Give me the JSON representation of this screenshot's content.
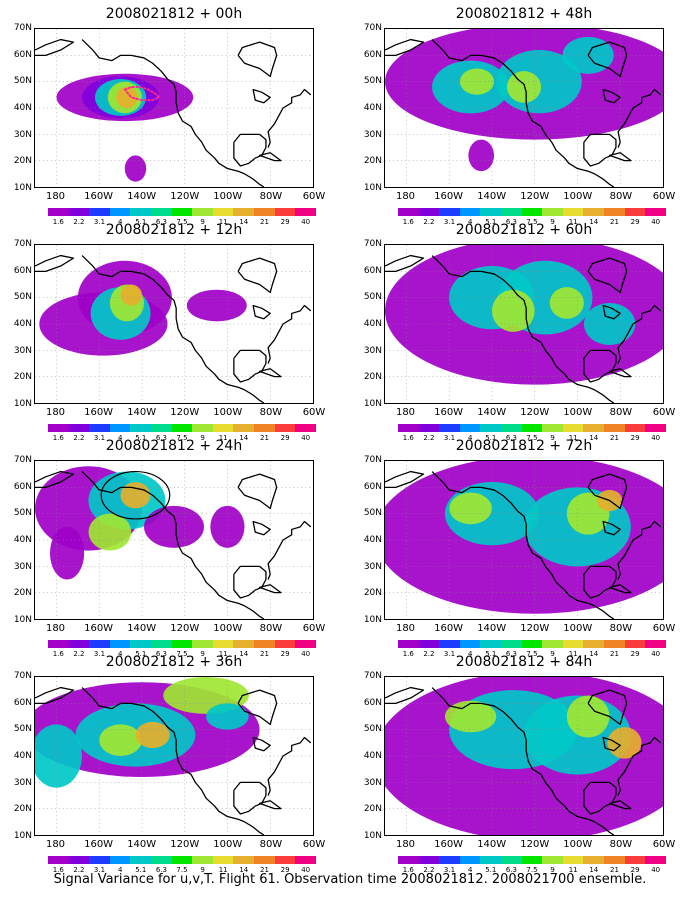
{
  "colorbar": {
    "labels": [
      "1.6",
      "2.2",
      "3.1",
      "4",
      "5.1",
      "6.3",
      "7.5",
      "9",
      "11",
      "14",
      "21",
      "29",
      "40"
    ],
    "colors": [
      "#a000c8",
      "#8200dc",
      "#1e3cff",
      "#0096ff",
      "#00c8c8",
      "#00dc8c",
      "#00e600",
      "#a0e632",
      "#e6dc32",
      "#e6af2d",
      "#f08228",
      "#fa3c3c",
      "#f00082"
    ]
  },
  "map": {
    "y_ticks": [
      "70N",
      "60N",
      "50N",
      "40N",
      "30N",
      "20N",
      "10N"
    ],
    "x_ticks": [
      "180",
      "160W",
      "140W",
      "120W",
      "100W",
      "80W",
      "60W"
    ]
  },
  "panels": [
    {
      "title": "2008021812 + 00h",
      "blobs": [
        {
          "lon": -148,
          "lat": 44,
          "rx": 32,
          "ry": 9,
          "level": 0
        },
        {
          "lon": -150,
          "lat": 44,
          "rx": 18,
          "ry": 8,
          "level": 1
        },
        {
          "lon": -150,
          "lat": 44,
          "rx": 12,
          "ry": 7,
          "level": 4
        },
        {
          "lon": -148,
          "lat": 44,
          "rx": 8,
          "ry": 6,
          "level": 7
        },
        {
          "lon": -147,
          "lat": 44,
          "rx": 5,
          "ry": 4,
          "level": 9
        },
        {
          "lon": -143,
          "lat": 17,
          "rx": 5,
          "ry": 5,
          "level": 0
        }
      ],
      "obs_track": {
        "lons": [
          -148,
          -145,
          -141,
          -137,
          -133,
          -132,
          -135,
          -140,
          -145,
          -148
        ],
        "lats": [
          47,
          48,
          48,
          47,
          45,
          44,
          43,
          43,
          44,
          47
        ],
        "color": "#ff2a8a"
      }
    },
    {
      "title": "2008021812 + 12h",
      "blobs": [
        {
          "lon": -158,
          "lat": 40,
          "rx": 30,
          "ry": 12,
          "level": 0
        },
        {
          "lon": -148,
          "lat": 50,
          "rx": 22,
          "ry": 14,
          "level": 0
        },
        {
          "lon": -150,
          "lat": 44,
          "rx": 14,
          "ry": 10,
          "level": 4
        },
        {
          "lon": -147,
          "lat": 48,
          "rx": 8,
          "ry": 7,
          "level": 7
        },
        {
          "lon": -145,
          "lat": 51,
          "rx": 5,
          "ry": 4,
          "level": 9
        },
        {
          "lon": -105,
          "lat": 47,
          "rx": 14,
          "ry": 6,
          "level": 0
        }
      ]
    },
    {
      "title": "2008021812 + 24h",
      "blobs": [
        {
          "lon": -165,
          "lat": 52,
          "rx": 25,
          "ry": 16,
          "level": 0
        },
        {
          "lon": -147,
          "lat": 55,
          "rx": 18,
          "ry": 11,
          "level": 4
        },
        {
          "lon": -155,
          "lat": 43,
          "rx": 10,
          "ry": 7,
          "level": 7
        },
        {
          "lon": -143,
          "lat": 57,
          "rx": 7,
          "ry": 5,
          "level": 9
        },
        {
          "lon": -125,
          "lat": 45,
          "rx": 14,
          "ry": 8,
          "level": 0
        },
        {
          "lon": -100,
          "lat": 45,
          "rx": 8,
          "ry": 8,
          "level": 0
        },
        {
          "lon": -175,
          "lat": 35,
          "rx": 8,
          "ry": 10,
          "level": 0
        }
      ],
      "ellipse": {
        "lon": -143,
        "lat": 57,
        "rx": 16,
        "ry": 9
      }
    },
    {
      "title": "2008021812 + 36h",
      "blobs": [
        {
          "lon": -140,
          "lat": 50,
          "rx": 55,
          "ry": 18,
          "level": 0
        },
        {
          "lon": -143,
          "lat": 48,
          "rx": 28,
          "ry": 12,
          "level": 4
        },
        {
          "lon": -150,
          "lat": 46,
          "rx": 10,
          "ry": 6,
          "level": 7
        },
        {
          "lon": -135,
          "lat": 48,
          "rx": 8,
          "ry": 5,
          "level": 9
        },
        {
          "lon": -180,
          "lat": 40,
          "rx": 12,
          "ry": 12,
          "level": 4
        },
        {
          "lon": -110,
          "lat": 63,
          "rx": 20,
          "ry": 7,
          "level": 7
        },
        {
          "lon": -100,
          "lat": 55,
          "rx": 10,
          "ry": 5,
          "level": 4
        }
      ]
    },
    {
      "title": "2008021812 + 48h",
      "blobs": [
        {
          "lon": -120,
          "lat": 50,
          "rx": 70,
          "ry": 22,
          "level": 0
        },
        {
          "lon": -150,
          "lat": 48,
          "rx": 18,
          "ry": 10,
          "level": 4
        },
        {
          "lon": -118,
          "lat": 50,
          "rx": 20,
          "ry": 12,
          "level": 4
        },
        {
          "lon": -147,
          "lat": 50,
          "rx": 8,
          "ry": 5,
          "level": 7
        },
        {
          "lon": -125,
          "lat": 48,
          "rx": 8,
          "ry": 6,
          "level": 7
        },
        {
          "lon": -95,
          "lat": 60,
          "rx": 12,
          "ry": 7,
          "level": 4
        },
        {
          "lon": -145,
          "lat": 22,
          "rx": 6,
          "ry": 6,
          "level": 0
        }
      ]
    },
    {
      "title": "2008021812 + 60h",
      "blobs": [
        {
          "lon": -120,
          "lat": 45,
          "rx": 70,
          "ry": 28,
          "level": 0
        },
        {
          "lon": -140,
          "lat": 50,
          "rx": 20,
          "ry": 12,
          "level": 4
        },
        {
          "lon": -115,
          "lat": 50,
          "rx": 22,
          "ry": 14,
          "level": 4
        },
        {
          "lon": -130,
          "lat": 45,
          "rx": 10,
          "ry": 8,
          "level": 7
        },
        {
          "lon": -105,
          "lat": 48,
          "rx": 8,
          "ry": 6,
          "level": 7
        },
        {
          "lon": -85,
          "lat": 40,
          "rx": 12,
          "ry": 8,
          "level": 4
        }
      ]
    },
    {
      "title": "2008021812 + 72h",
      "blobs": [
        {
          "lon": -120,
          "lat": 42,
          "rx": 75,
          "ry": 30,
          "level": 0
        },
        {
          "lon": -140,
          "lat": 50,
          "rx": 22,
          "ry": 12,
          "level": 4
        },
        {
          "lon": -100,
          "lat": 45,
          "rx": 25,
          "ry": 15,
          "level": 4
        },
        {
          "lon": -150,
          "lat": 52,
          "rx": 10,
          "ry": 6,
          "level": 7
        },
        {
          "lon": -95,
          "lat": 50,
          "rx": 10,
          "ry": 8,
          "level": 7
        },
        {
          "lon": -85,
          "lat": 55,
          "rx": 6,
          "ry": 4,
          "level": 9
        }
      ]
    },
    {
      "title": "2008021812 + 84h",
      "blobs": [
        {
          "lon": -120,
          "lat": 40,
          "rx": 75,
          "ry": 32,
          "level": 0
        },
        {
          "lon": -130,
          "lat": 50,
          "rx": 30,
          "ry": 15,
          "level": 4
        },
        {
          "lon": -100,
          "lat": 48,
          "rx": 25,
          "ry": 15,
          "level": 4
        },
        {
          "lon": -150,
          "lat": 55,
          "rx": 12,
          "ry": 6,
          "level": 7
        },
        {
          "lon": -95,
          "lat": 55,
          "rx": 10,
          "ry": 8,
          "level": 7
        },
        {
          "lon": -78,
          "lat": 45,
          "rx": 8,
          "ry": 6,
          "level": 9
        }
      ]
    }
  ],
  "footer": "Signal Variance for u,v,T. Flight 61. Observation time 2008021812. 2008021700 ensemble."
}
